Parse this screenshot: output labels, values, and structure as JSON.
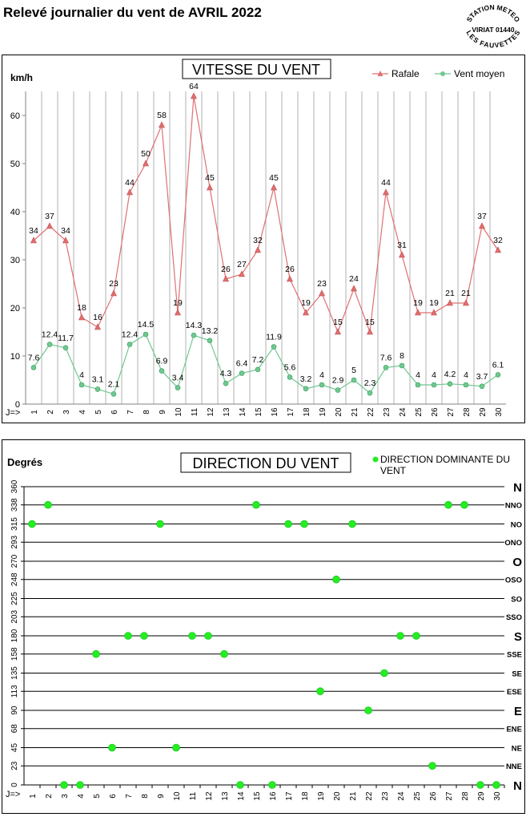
{
  "page": {
    "title": "Relevé journalier du vent de AVRIL 2022"
  },
  "stamp": {
    "top_text": "STATION METEO",
    "middle_text": "VIRIAT 01440",
    "bottom_text": "LES FAUVETTES"
  },
  "chart_data": [
    {
      "type": "line",
      "title": "VITESSE DU VENT",
      "ylabel": "km/h",
      "x_prefix": "J=>",
      "ylim": [
        0,
        65
      ],
      "yticks": [
        0,
        10,
        20,
        30,
        40,
        50,
        60
      ],
      "grid": true,
      "legend_position": "top-right",
      "x": [
        1,
        2,
        3,
        4,
        5,
        6,
        7,
        8,
        9,
        10,
        11,
        12,
        13,
        14,
        15,
        16,
        17,
        18,
        19,
        20,
        21,
        22,
        23,
        24,
        25,
        26,
        27,
        28,
        29,
        30
      ],
      "series": [
        {
          "name": "Rafale",
          "color": "#e07070",
          "marker": "triangle",
          "values": [
            34,
            37,
            34,
            18,
            16,
            23,
            44,
            50,
            58,
            19,
            64,
            45,
            26,
            27,
            32,
            45,
            26,
            19,
            23,
            15,
            24,
            15,
            44,
            31,
            19,
            19,
            21,
            21,
            37,
            32
          ],
          "labels": [
            "34",
            "37",
            "34",
            "18",
            "16",
            "23",
            "44",
            "50",
            "58",
            "19",
            "64",
            "45",
            "26",
            "27",
            "32",
            "45",
            "26",
            "19",
            "23",
            "15",
            "24",
            "15",
            "44",
            "31",
            "19",
            "19",
            "21",
            "21",
            "37",
            "32"
          ]
        },
        {
          "name": "Vent moyen",
          "color": "#70c890",
          "marker": "circle",
          "values": [
            7.6,
            12.4,
            11.7,
            4,
            3.1,
            2.1,
            12.4,
            14.5,
            6.9,
            3.4,
            14.3,
            13.2,
            4.3,
            6.4,
            7.2,
            11.9,
            5.6,
            3.2,
            4,
            2.9,
            5,
            2.3,
            7.6,
            8,
            4,
            4,
            4.2,
            4,
            3.7,
            6.1
          ],
          "labels": [
            "7.6",
            "12.4",
            "11.7",
            "4",
            "3.1",
            "2.1",
            "12.4",
            "14.5",
            "6.9",
            "3.4",
            "14.3",
            "13.2",
            "4.3",
            "6.4",
            "7.2",
            "11.9",
            "5.6",
            "3.2",
            "4",
            "2.9",
            "5",
            "2.3",
            "7.6",
            "8",
            "4",
            "4",
            "4.2",
            "4",
            "3.7",
            "6.1"
          ]
        }
      ]
    },
    {
      "type": "scatter",
      "title": "DIRECTION DU VENT",
      "ylabel": "Degrés",
      "x_prefix": "J=>",
      "ylim": [
        0,
        360
      ],
      "grid": true,
      "legend_position": "top-right",
      "yticks": [
        0,
        23,
        45,
        68,
        90,
        113,
        135,
        158,
        180,
        203,
        225,
        248,
        270,
        293,
        315,
        338,
        360
      ],
      "compass": [
        "N",
        "NNE",
        "NE",
        "ENE",
        "E",
        "ESE",
        "SE",
        "SSE",
        "S",
        "SSO",
        "SO",
        "OSO",
        "O",
        "ONO",
        "NO",
        "NNO",
        "N"
      ],
      "x": [
        1,
        2,
        3,
        4,
        5,
        6,
        7,
        8,
        9,
        10,
        11,
        12,
        13,
        14,
        15,
        16,
        17,
        18,
        19,
        20,
        21,
        22,
        23,
        24,
        25,
        26,
        27,
        28,
        29,
        30
      ],
      "series": [
        {
          "name": "DIRECTION DOMINANTE DU VENT",
          "color": "#22ee22",
          "values": [
            315,
            338,
            0,
            0,
            158,
            45,
            180,
            180,
            315,
            45,
            180,
            180,
            158,
            0,
            338,
            0,
            315,
            315,
            113,
            248,
            315,
            90,
            135,
            180,
            180,
            23,
            338,
            338,
            0,
            0
          ]
        }
      ]
    }
  ]
}
